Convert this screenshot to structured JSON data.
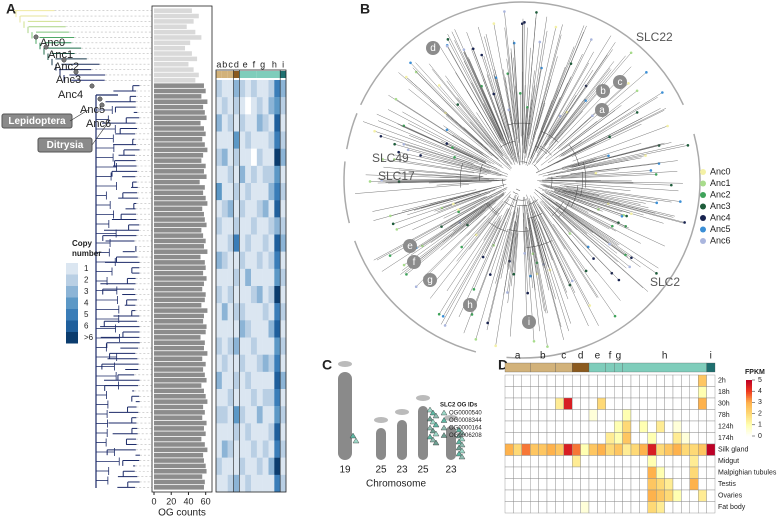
{
  "panels": {
    "a": "A",
    "b": "B",
    "c": "C",
    "d": "D"
  },
  "tree": {
    "nodes": [
      "Anc0",
      "Anc1",
      "Anc2",
      "Anc3",
      "Anc4",
      "Anc5",
      "Anc6"
    ],
    "clades": [
      "Lepidoptera",
      "Ditrysia"
    ]
  },
  "chart_data": [
    {
      "type": "bar",
      "orientation": "horizontal",
      "xlabel": "OG counts",
      "xlim": [
        0,
        65
      ],
      "xticks": [
        0,
        20,
        40,
        60
      ],
      "series": [
        {
          "color": "#d9d9d9",
          "values": [
            44,
            52,
            46,
            38,
            48,
            55,
            42,
            36,
            44,
            50,
            40,
            46,
            52,
            48,
            null,
            null,
            null,
            null,
            null,
            null,
            null,
            null,
            null,
            null,
            null,
            null,
            null,
            null,
            null,
            null,
            null,
            null,
            null,
            null,
            null,
            null,
            null,
            null,
            null,
            null,
            null,
            null,
            null,
            null,
            null,
            null,
            null,
            null,
            null,
            null,
            null,
            null,
            null,
            null,
            null,
            null,
            null,
            null,
            null,
            null,
            null,
            null,
            null,
            null,
            null,
            null,
            null,
            null,
            null,
            null,
            null,
            null,
            null,
            null,
            null,
            null,
            null,
            null,
            null,
            null,
            null,
            null,
            null,
            null,
            null,
            null,
            null,
            null,
            null,
            null
          ]
        },
        {
          "color": "#8c8c8c",
          "values": [
            null,
            null,
            null,
            null,
            null,
            null,
            null,
            null,
            null,
            null,
            null,
            null,
            null,
            null,
            58,
            60,
            55,
            62,
            57,
            59,
            61,
            54,
            58,
            60,
            56,
            59,
            62,
            57,
            55,
            60,
            58,
            61,
            53,
            59,
            57,
            60,
            62,
            56,
            58,
            59,
            61,
            55,
            57,
            60,
            58,
            62,
            54,
            59,
            60,
            57,
            61,
            58,
            56,
            60,
            59,
            55,
            62,
            58,
            57,
            61,
            60,
            54,
            59,
            58,
            62,
            56,
            60,
            57,
            59,
            61,
            55,
            58,
            60,
            62,
            57,
            59,
            56,
            61,
            58,
            60,
            55,
            59,
            62,
            57,
            58,
            60,
            61,
            56,
            59,
            58
          ]
        }
      ]
    },
    {
      "type": "heatmap",
      "colorbar_title": [
        "Copy",
        "number"
      ],
      "column_labels": [
        "a",
        "b",
        "c",
        "d",
        "e",
        "f",
        "g",
        "h",
        "i"
      ],
      "group_colors": [
        "#d2b27a",
        "#d2b27a",
        "#d2b27a",
        "#8b5a1e",
        "#7fcdbb",
        "#7fcdbb",
        "#7fcdbb",
        "#7fcdbb",
        "#1f6f6f"
      ],
      "colors": [
        "#ffffff",
        "#dbe6f1",
        "#b9cfe4",
        "#8cb4d6",
        "#5c98c6",
        "#3a7db8",
        "#1f5f9c",
        "#0b3c6e"
      ],
      "cticks": [
        1,
        2,
        3,
        4,
        5,
        6,
        {
          "value": 7,
          "label": ">6"
        }
      ],
      "values": [
        [
          2,
          1,
          1,
          3,
          2,
          1,
          2,
          1,
          1,
          2,
          5,
          3
        ],
        [
          1,
          2,
          1,
          2,
          1,
          0,
          1,
          2,
          1,
          3,
          4,
          2
        ],
        [
          3,
          1,
          2,
          1,
          2,
          1,
          1,
          3,
          2,
          1,
          6,
          1
        ],
        [
          1,
          1,
          1,
          4,
          1,
          2,
          1,
          1,
          1,
          2,
          5,
          2
        ],
        [
          2,
          3,
          1,
          2,
          1,
          1,
          0,
          2,
          1,
          1,
          7,
          3
        ],
        [
          1,
          1,
          2,
          1,
          3,
          1,
          2,
          1,
          2,
          2,
          4,
          1
        ],
        [
          4,
          1,
          1,
          2,
          1,
          2,
          1,
          1,
          1,
          3,
          5,
          2
        ],
        [
          1,
          2,
          3,
          1,
          2,
          1,
          1,
          2,
          3,
          1,
          6,
          1
        ],
        [
          2,
          1,
          1,
          2,
          1,
          1,
          2,
          1,
          1,
          2,
          3,
          2
        ],
        [
          1,
          1,
          2,
          5,
          1,
          2,
          1,
          1,
          2,
          1,
          6,
          3
        ],
        [
          3,
          2,
          1,
          1,
          2,
          1,
          1,
          2,
          1,
          2,
          5,
          1
        ],
        [
          1,
          1,
          1,
          2,
          1,
          3,
          1,
          1,
          1,
          1,
          4,
          2
        ],
        [
          2,
          1,
          2,
          1,
          1,
          1,
          2,
          3,
          1,
          2,
          7,
          1
        ],
        [
          1,
          3,
          1,
          2,
          2,
          1,
          1,
          1,
          2,
          1,
          5,
          2
        ],
        [
          1,
          1,
          1,
          1,
          3,
          2,
          1,
          1,
          1,
          3,
          6,
          1
        ],
        [
          2,
          1,
          2,
          3,
          1,
          1,
          2,
          1,
          1,
          1,
          4,
          2
        ],
        [
          1,
          2,
          1,
          1,
          2,
          1,
          1,
          2,
          3,
          2,
          5,
          1
        ],
        [
          3,
          1,
          1,
          2,
          1,
          2,
          1,
          1,
          1,
          1,
          6,
          3
        ],
        [
          1,
          1,
          2,
          1,
          1,
          1,
          2,
          1,
          2,
          2,
          5,
          1
        ],
        [
          2,
          2,
          1,
          4,
          2,
          1,
          1,
          3,
          1,
          1,
          4,
          2
        ],
        [
          1,
          1,
          1,
          2,
          1,
          2,
          1,
          1,
          1,
          2,
          6,
          1
        ],
        [
          1,
          3,
          2,
          1,
          1,
          1,
          2,
          1,
          2,
          1,
          5,
          2
        ],
        [
          2,
          1,
          1,
          1,
          2,
          1,
          1,
          2,
          1,
          3,
          7,
          1
        ],
        [
          1,
          1,
          2,
          3,
          1,
          2,
          1,
          1,
          1,
          1,
          5,
          2
        ]
      ]
    },
    {
      "type": "heatmap",
      "colorbar_title": [
        "FPKM"
      ],
      "column_labels": [
        "a",
        "b",
        "c",
        "d",
        "e",
        "f",
        "g",
        "h",
        "i"
      ],
      "group_colors": [
        "#d2b27a",
        "#d2b27a",
        "#d2b27a",
        "#8b5a1e",
        "#7fcdbb",
        "#7fcdbb",
        "#7fcdbb",
        "#7fcdbb",
        "#1f6f6f"
      ],
      "rows": [
        "2h",
        "18h",
        "30h",
        "78h",
        "124h",
        "174h",
        "Silk gland",
        "Midgut",
        "Malpighian tubules",
        "Testis",
        "Ovaries",
        "Fat body"
      ],
      "colors": [
        "#ffffff",
        "#ffffb2",
        "#fed976",
        "#feb24c",
        "#f03b20",
        "#bd0026"
      ],
      "clim": [
        0,
        5
      ],
      "cticks": [
        0,
        1,
        2,
        3,
        4,
        5
      ],
      "values": [
        [
          0,
          0,
          0,
          0,
          0,
          0,
          0,
          0,
          0,
          0,
          0,
          0,
          0,
          0,
          0,
          0,
          0,
          0,
          0,
          0,
          0,
          0,
          0,
          2.5,
          0
        ],
        [
          0,
          0,
          0,
          0,
          0,
          0,
          0,
          0,
          0,
          0,
          0,
          0,
          0,
          0,
          0,
          0,
          0,
          0,
          0,
          0,
          0,
          0,
          0,
          1,
          0
        ],
        [
          0,
          0,
          0,
          0,
          0,
          0,
          1.5,
          4.5,
          0,
          0,
          0,
          2,
          0,
          0,
          0,
          0,
          0,
          0,
          0,
          0,
          0,
          0,
          0,
          3,
          0
        ],
        [
          0,
          0,
          0,
          0,
          0,
          0,
          0,
          0,
          0,
          0,
          0.5,
          0,
          0,
          0,
          1,
          0,
          0,
          0,
          0,
          0,
          0,
          0,
          0,
          0,
          0
        ],
        [
          0,
          0,
          0,
          0,
          0,
          0,
          0,
          0,
          0,
          0,
          0,
          0,
          0,
          1,
          2,
          0,
          1,
          0,
          1.5,
          0,
          0.5,
          0,
          0,
          0,
          0
        ],
        [
          0,
          0,
          0,
          0,
          0,
          0,
          0,
          0,
          0,
          0,
          0,
          0,
          1.5,
          1,
          2.5,
          0,
          0,
          1,
          0,
          0,
          1.5,
          0.5,
          0,
          0,
          0
        ],
        [
          3,
          2,
          3.5,
          2.5,
          2.5,
          3,
          2.5,
          4.5,
          3.5,
          1,
          2.5,
          3,
          2,
          2.5,
          1.5,
          2,
          3,
          4.5,
          2,
          2.5,
          3,
          2,
          2,
          2.5,
          5
        ],
        [
          0,
          0,
          0,
          0,
          0,
          0,
          0,
          0,
          1.5,
          0,
          0,
          0,
          0,
          0,
          0,
          0,
          0,
          1,
          0,
          0,
          0,
          0,
          1.5,
          0,
          0
        ],
        [
          0,
          0,
          0,
          0,
          0,
          0,
          0,
          0,
          0,
          0,
          0,
          0,
          0,
          0,
          0,
          0,
          0,
          3,
          1,
          0,
          0,
          0,
          2,
          0,
          0
        ],
        [
          0,
          0,
          0,
          0,
          0,
          0,
          0,
          0,
          0,
          0,
          0,
          0,
          0,
          0,
          0,
          0,
          0,
          2.5,
          2,
          1.5,
          0,
          0,
          3,
          0,
          0
        ],
        [
          0,
          0,
          0,
          0,
          0,
          0,
          0,
          0,
          0,
          0,
          0,
          0,
          0,
          0,
          0,
          0,
          0,
          3,
          2.5,
          2,
          1,
          0,
          0,
          1.5,
          0
        ],
        [
          0,
          0,
          0,
          0,
          0,
          0,
          0,
          0,
          0,
          0.5,
          0,
          0,
          0,
          0,
          0,
          0,
          0,
          2,
          1.5,
          0,
          0,
          0,
          0,
          0,
          0
        ]
      ]
    }
  ],
  "circular_tree": {
    "families": [
      "SLC22",
      "SLC49",
      "SLC17",
      "SLC2"
    ],
    "legend": [
      {
        "name": "Anc0",
        "color": "#f4f1a6"
      },
      {
        "name": "Anc1",
        "color": "#a8dc8c"
      },
      {
        "name": "Anc2",
        "color": "#3fa35a"
      },
      {
        "name": "Anc3",
        "color": "#1d5c3a"
      },
      {
        "name": "Anc4",
        "color": "#18234f"
      },
      {
        "name": "Anc5",
        "color": "#3b8fd6"
      },
      {
        "name": "Anc6",
        "color": "#aab6de"
      }
    ],
    "highlights": [
      "a",
      "b",
      "c",
      "d",
      "e",
      "f",
      "g",
      "h",
      "i"
    ]
  },
  "chromosome_map": {
    "chromosomes": [
      19,
      25,
      23,
      25,
      23
    ],
    "xlabel": "Chromosome",
    "legend_title": "SLC2 OG IDs",
    "og_ids": [
      {
        "name": "OG0000540",
        "color": "#9ed8c8"
      },
      {
        "name": "OG0008344",
        "color": "#5fb7a3"
      },
      {
        "name": "OG0000164",
        "color": "#8fbcb0"
      },
      {
        "name": "OG0006208",
        "color": "#6e9f92"
      }
    ]
  }
}
